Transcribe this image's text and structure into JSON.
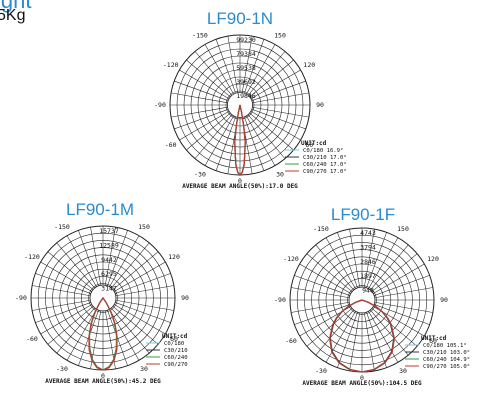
{
  "header": {
    "title_fragment": "ight",
    "weight_fragment": "5Kg"
  },
  "colors": {
    "c0": "#7cc8e8",
    "c30": "#2e3a4a",
    "c60": "#3a9a4a",
    "c90": "#c0392b",
    "grid": "#222222",
    "title": "#2a8ccf"
  },
  "chart_data": [
    {
      "type": "polar-line",
      "title": "LF90-1N",
      "radial_ticks": [
        "99230",
        "79384",
        "59538",
        "39692",
        "19846"
      ],
      "angle_labels": [
        "-150",
        "150",
        "-120",
        "120",
        "-90",
        "90",
        "-60",
        "60",
        "-30",
        "30",
        "0"
      ],
      "unit_label": "UNIT:cd",
      "legend": [
        {
          "label": "C0/180",
          "value": "16.9°",
          "color_key": "c0"
        },
        {
          "label": "C30/210",
          "value": "17.0°",
          "color_key": "c30"
        },
        {
          "label": "C60/240",
          "value": "17.0°",
          "color_key": "c60"
        },
        {
          "label": "C90/270",
          "value": "17.0°",
          "color_key": "c90"
        }
      ],
      "footer": "AVERAGE BEAM ANGLE(50%):17.0 DEG",
      "rmax": 99230,
      "series": [
        {
          "color_key": "c0",
          "half_width_deg": 8.45,
          "theta": [
            0,
            2,
            4,
            6,
            8,
            10,
            12,
            14
          ],
          "intensity": [
            99230,
            95000,
            84000,
            66000,
            52000,
            30000,
            10000,
            0
          ]
        },
        {
          "color_key": "c30",
          "half_width_deg": 8.5,
          "theta": [
            0,
            2,
            4,
            6,
            8,
            10,
            12,
            14
          ],
          "intensity": [
            99230,
            95000,
            84000,
            66000,
            52000,
            30000,
            10000,
            0
          ]
        },
        {
          "color_key": "c60",
          "half_width_deg": 8.5,
          "theta": [
            0,
            2,
            4,
            6,
            8,
            10,
            12,
            14
          ],
          "intensity": [
            99230,
            95200,
            84500,
            66500,
            52500,
            30500,
            10500,
            0
          ]
        },
        {
          "color_key": "c90",
          "half_width_deg": 8.5,
          "theta": [
            0,
            2,
            4,
            6,
            8,
            10,
            12,
            14
          ],
          "intensity": [
            99230,
            95500,
            85000,
            67000,
            53000,
            31000,
            11000,
            0
          ]
        }
      ]
    },
    {
      "type": "polar-line",
      "title": "LF90-1M",
      "radial_ticks": [
        "15737",
        "12589",
        "9442",
        "6295",
        "3147"
      ],
      "angle_labels": [
        "-150",
        "150",
        "-120",
        "120",
        "-90",
        "90",
        "-60",
        "60",
        "-30",
        "30",
        "0"
      ],
      "unit_label": "UNIT:cd",
      "legend": [
        {
          "label": "C0/180",
          "value": "",
          "color_key": "c0"
        },
        {
          "label": "C30/210",
          "value": "",
          "color_key": "c30"
        },
        {
          "label": "C60/240",
          "value": "",
          "color_key": "c60"
        },
        {
          "label": "C90/270",
          "value": "",
          "color_key": "c90"
        }
      ],
      "footer": "AVERAGE BEAM ANGLE(50%):45.2 DEG",
      "rmax": 15737,
      "series": [
        {
          "color_key": "c0",
          "theta": [
            0,
            5,
            10,
            15,
            20,
            25,
            30,
            35,
            40
          ],
          "intensity": [
            15737,
            15200,
            13800,
            11500,
            8800,
            6000,
            3400,
            1200,
            0
          ]
        },
        {
          "color_key": "c30",
          "theta": [
            0,
            5,
            10,
            15,
            20,
            25,
            30,
            35,
            40
          ],
          "intensity": [
            15737,
            15100,
            13600,
            11300,
            8600,
            5800,
            3200,
            1100,
            0
          ]
        },
        {
          "color_key": "c60",
          "theta": [
            0,
            5,
            10,
            15,
            20,
            25,
            30,
            35,
            40
          ],
          "intensity": [
            15737,
            15150,
            13700,
            11400,
            8700,
            5900,
            3300,
            1150,
            0
          ]
        },
        {
          "color_key": "c90",
          "theta": [
            0,
            5,
            10,
            15,
            20,
            25,
            30,
            35,
            40
          ],
          "intensity": [
            15737,
            15300,
            13900,
            11700,
            9000,
            6200,
            3600,
            1300,
            0
          ]
        }
      ]
    },
    {
      "type": "polar-line",
      "title": "LF90-1F",
      "radial_ticks": [
        "4743",
        "3794",
        "2846",
        "1897",
        "948"
      ],
      "angle_labels": [
        "-150",
        "150",
        "-120",
        "120",
        "-90",
        "90",
        "-60",
        "60",
        "-30",
        "30",
        "0"
      ],
      "unit_label": "UNIT:cd",
      "legend": [
        {
          "label": "C0/180",
          "value": "105.1°",
          "color_key": "c0"
        },
        {
          "label": "C30/210",
          "value": "103.0°",
          "color_key": "c30"
        },
        {
          "label": "C60/240",
          "value": "104.9°",
          "color_key": "c60"
        },
        {
          "label": "C90/270",
          "value": "105.0°",
          "color_key": "c90"
        }
      ],
      "footer": "AVERAGE BEAM ANGLE(50%):104.5 DEG",
      "rmax": 4743,
      "series": [
        {
          "color_key": "c0",
          "theta": [
            0,
            10,
            20,
            30,
            40,
            50,
            55,
            60,
            65,
            70,
            75
          ],
          "intensity": [
            4743,
            4650,
            4400,
            3950,
            3300,
            2500,
            2050,
            1550,
            1000,
            450,
            0
          ]
        },
        {
          "color_key": "c30",
          "theta": [
            0,
            10,
            20,
            30,
            40,
            50,
            55,
            60,
            65,
            70,
            75
          ],
          "intensity": [
            4743,
            4640,
            4380,
            3920,
            3260,
            2440,
            1990,
            1500,
            960,
            420,
            0
          ]
        },
        {
          "color_key": "c60",
          "theta": [
            0,
            10,
            20,
            30,
            40,
            50,
            55,
            60,
            65,
            70,
            75
          ],
          "intensity": [
            4743,
            4660,
            4420,
            3970,
            3320,
            2520,
            2070,
            1570,
            1020,
            470,
            0
          ]
        },
        {
          "color_key": "c90",
          "theta": [
            0,
            10,
            20,
            30,
            40,
            50,
            55,
            60,
            65,
            70,
            75
          ],
          "intensity": [
            4743,
            4655,
            4410,
            3960,
            3310,
            2510,
            2060,
            1560,
            1010,
            460,
            0
          ]
        }
      ]
    }
  ]
}
